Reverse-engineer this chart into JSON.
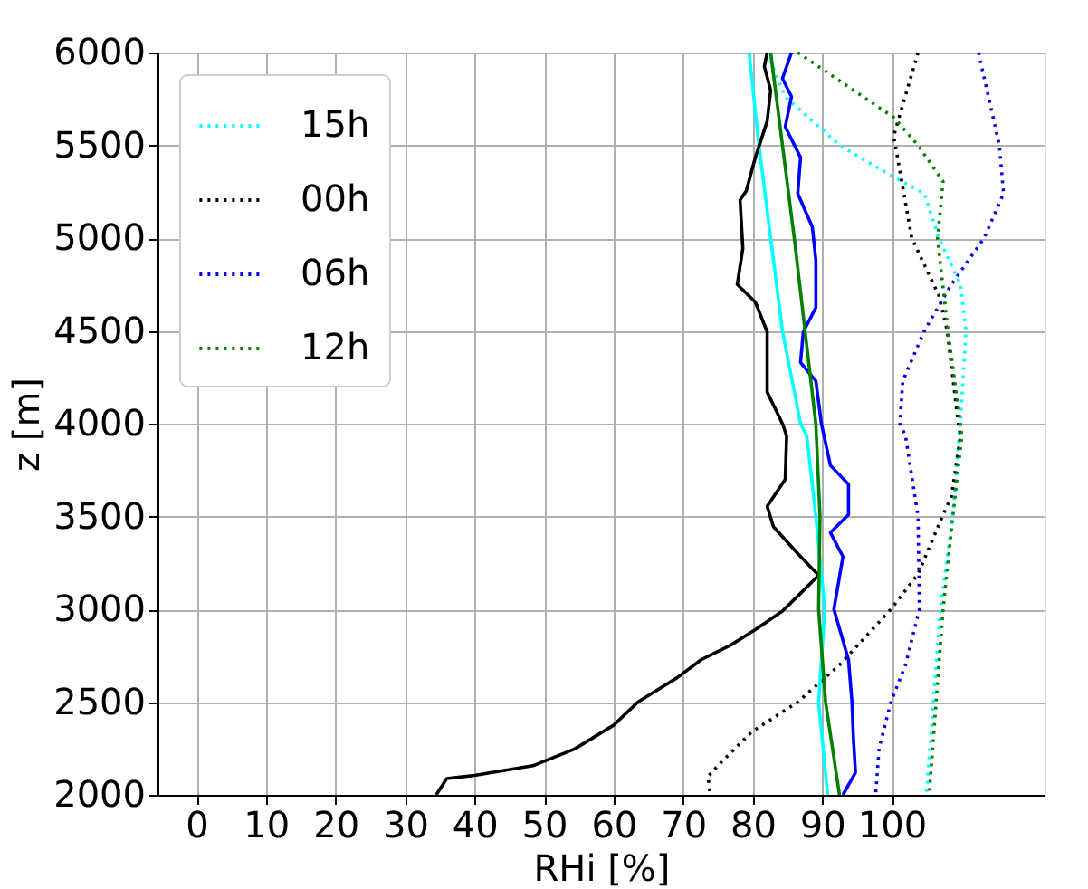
{
  "chart_data": {
    "type": "line",
    "xlabel": "RHi [%]",
    "ylabel": "z [m]",
    "xlim": [
      -5.6,
      122
    ],
    "xticks": [
      0,
      10,
      20,
      30,
      40,
      50,
      60,
      70,
      80,
      90,
      100
    ],
    "ylim": [
      2000,
      6000
    ],
    "yticks": [
      2000,
      2500,
      3000,
      3500,
      4000,
      4500,
      5000,
      5500,
      6000
    ],
    "grid": true,
    "legend": "top left",
    "marker": "none",
    "series": [
      {
        "name": "15h",
        "color": "#00ffff",
        "line_style": "dotted",
        "x": [
          82.1,
          84.7,
          92.5,
          99.9,
          104.7,
          106.8,
          109.9,
          110.7,
          109.9,
          109.7,
          108.8,
          107,
          106,
          105
        ],
        "values": [
          6000,
          5762,
          5500,
          5337,
          5240,
          5000,
          4750,
          4500,
          4000,
          3934,
          3500,
          3000,
          2500,
          2000
        ]
      },
      {
        "name": "00h",
        "color": "#000000",
        "line_style": "dotted",
        "x": [
          103.8,
          100.3,
          102.9,
          106.8,
          108,
          109.6,
          109.9,
          108.6,
          107.3,
          103.8,
          99.9,
          92.5,
          86.5,
          79.9,
          75.6,
          73.6,
          73.9
        ],
        "values": [
          6000,
          5550,
          5000,
          4690,
          4500,
          4000,
          3934,
          3608,
          3500,
          3190,
          3000,
          2700,
          2500,
          2340,
          2180,
          2100,
          2000
        ]
      },
      {
        "name": "06h",
        "color": "#0000ff",
        "line_style": "dotted",
        "x": [
          112.5,
          115.5,
          116.1,
          113.3,
          108.6,
          104.7,
          101.6,
          101.2,
          102,
          103.8,
          104,
          102,
          99.9,
          98.2,
          97.7
        ],
        "values": [
          6000,
          5500,
          5240,
          5000,
          4750,
          4500,
          4230,
          4000,
          3934,
          3500,
          3000,
          2700,
          2500,
          2250,
          2000
        ]
      },
      {
        "name": "12h",
        "color": "#008000",
        "line_style": "dotted",
        "x": [
          86.5,
          100.3,
          103.8,
          107.4,
          106.6,
          108.1,
          109.9,
          110.1,
          108.8,
          107.4,
          106.4,
          105.4
        ],
        "values": [
          6000,
          5650,
          5500,
          5305,
          5000,
          4500,
          4000,
          3934,
          3500,
          3000,
          2500,
          2000
        ]
      },
      {
        "color": "#00ffff",
        "line_style": "solid",
        "x": [
          79.5,
          80.8,
          82.6,
          84.3,
          86.9,
          87.8,
          89.1,
          90.4,
          89.5,
          90.8
        ],
        "values": [
          6000,
          5534,
          5000,
          4500,
          4000,
          3934,
          3500,
          3000,
          2500,
          2000
        ]
      },
      {
        "color": "#000000",
        "line_style": "solid",
        "x": [
          82.1,
          81.7,
          82.6,
          82.1,
          80.4,
          79.1,
          78.2,
          78.6,
          77.8,
          80.4,
          82.1,
          82.1,
          84.3,
          84.9,
          84.7,
          82.1,
          83,
          86.5,
          89.5,
          86.9,
          84.3,
          80.4,
          76.9,
          72.6,
          69.1,
          63.5,
          60,
          54.4,
          48.4,
          40,
          36,
          34.5
        ],
        "values": [
          6000,
          5925,
          5795,
          5630,
          5435,
          5255,
          5205,
          4945,
          4750,
          4655,
          4495,
          4170,
          4000,
          3934,
          3700,
          3555,
          3445,
          3300,
          3183,
          3086,
          2990,
          2890,
          2808,
          2728,
          2630,
          2500,
          2375,
          2247,
          2157,
          2105,
          2088,
          2000
        ]
      },
      {
        "color": "#0000ff",
        "line_style": "solid",
        "x": [
          85.6,
          84.3,
          85.6,
          84.7,
          86.9,
          86.5,
          88.6,
          89.1,
          89.1,
          87.3,
          86.9,
          89.1,
          89.9,
          91.2,
          93.8,
          93.8,
          91.2,
          93,
          91.7,
          93.8,
          94.3,
          94.5,
          94.8,
          93
        ],
        "values": [
          6000,
          5860,
          5762,
          5600,
          5435,
          5240,
          5060,
          4880,
          4625,
          4495,
          4330,
          4230,
          4000,
          3775,
          3673,
          3510,
          3413,
          3284,
          3000,
          2728,
          2500,
          2312,
          2120,
          2000
        ]
      },
      {
        "color": "#008000",
        "line_style": "solid",
        "x": [
          82.6,
          86.0,
          89.1,
          89.7,
          89.5,
          90.5,
          92.5
        ],
        "values": [
          6000,
          5000,
          4000,
          3500,
          3000,
          2500,
          2000
        ]
      }
    ]
  }
}
